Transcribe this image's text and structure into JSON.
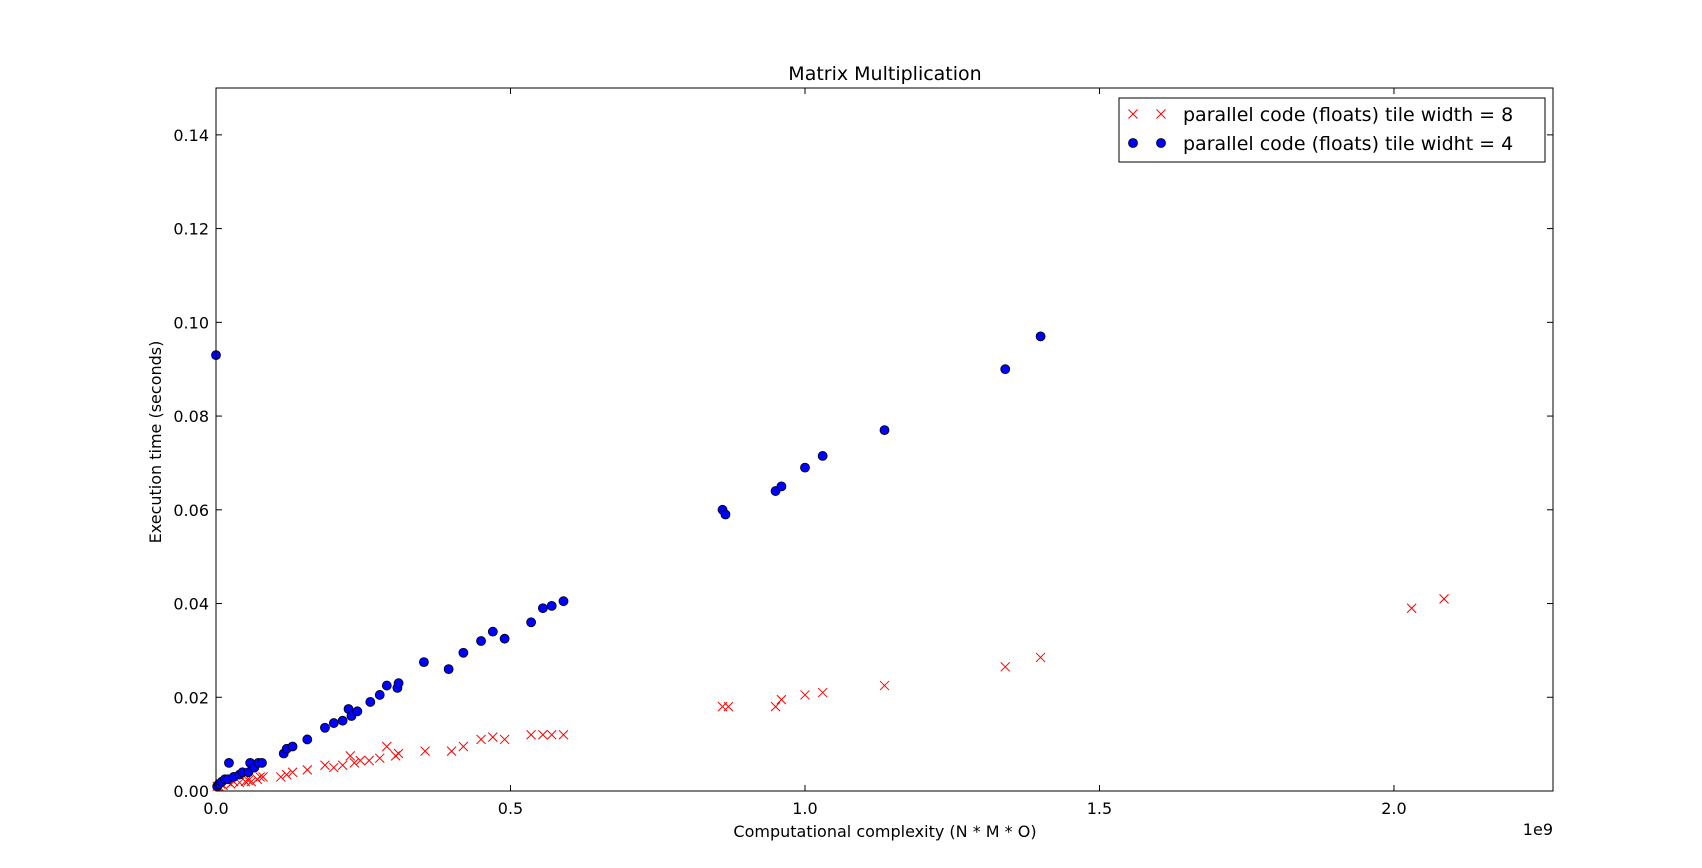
{
  "chart_data": {
    "type": "scatter",
    "title": "Matrix Multiplication",
    "xlabel": "Computational complexity (N * M * O)",
    "ylabel": "Execution time (seconds)",
    "x_offset_label": "1e9",
    "xlim": [
      0,
      2.27
    ],
    "ylim": [
      0,
      0.15
    ],
    "xticks": [
      "0.0",
      "0.5",
      "1.0",
      "1.5",
      "2.0"
    ],
    "xtick_values": [
      0,
      0.5,
      1.0,
      1.5,
      2.0
    ],
    "yticks": [
      "0.00",
      "0.02",
      "0.04",
      "0.06",
      "0.08",
      "0.10",
      "0.12",
      "0.14"
    ],
    "ytick_values": [
      0,
      0.02,
      0.04,
      0.06,
      0.08,
      0.1,
      0.12,
      0.14
    ],
    "grid": false,
    "legend_position": "top-right",
    "series": [
      {
        "name": "parallel code (floats) tile width = 8",
        "marker": "x",
        "color": "#ff0000",
        "points": [
          [
            0.002,
            0.001
          ],
          [
            0.005,
            0.001
          ],
          [
            0.008,
            0.0015
          ],
          [
            0.012,
            0.0012
          ],
          [
            0.02,
            0.002
          ],
          [
            0.025,
            0.0015
          ],
          [
            0.03,
            0.002
          ],
          [
            0.04,
            0.0018
          ],
          [
            0.05,
            0.002
          ],
          [
            0.055,
            0.0022
          ],
          [
            0.06,
            0.002
          ],
          [
            0.07,
            0.0025
          ],
          [
            0.075,
            0.003
          ],
          [
            0.08,
            0.003
          ],
          [
            0.11,
            0.003
          ],
          [
            0.12,
            0.0035
          ],
          [
            0.13,
            0.004
          ],
          [
            0.155,
            0.0045
          ],
          [
            0.185,
            0.0055
          ],
          [
            0.2,
            0.005
          ],
          [
            0.215,
            0.0055
          ],
          [
            0.228,
            0.0075
          ],
          [
            0.235,
            0.006
          ],
          [
            0.245,
            0.0065
          ],
          [
            0.26,
            0.0065
          ],
          [
            0.278,
            0.007
          ],
          [
            0.29,
            0.0095
          ],
          [
            0.305,
            0.0075
          ],
          [
            0.31,
            0.008
          ],
          [
            0.355,
            0.0085
          ],
          [
            0.4,
            0.0085
          ],
          [
            0.42,
            0.0095
          ],
          [
            0.45,
            0.011
          ],
          [
            0.47,
            0.0115
          ],
          [
            0.49,
            0.011
          ],
          [
            0.535,
            0.012
          ],
          [
            0.555,
            0.012
          ],
          [
            0.57,
            0.012
          ],
          [
            0.59,
            0.012
          ],
          [
            0.86,
            0.018
          ],
          [
            0.87,
            0.018
          ],
          [
            0.95,
            0.018
          ],
          [
            0.96,
            0.0195
          ],
          [
            1.0,
            0.0205
          ],
          [
            1.03,
            0.021
          ],
          [
            1.135,
            0.0225
          ],
          [
            1.34,
            0.0265
          ],
          [
            1.4,
            0.0285
          ],
          [
            2.03,
            0.039
          ],
          [
            2.085,
            0.041
          ]
        ]
      },
      {
        "name": "parallel code (floats) tile widht = 4",
        "marker": "o",
        "color": "#0000ff",
        "points": [
          [
            0.0,
            0.093
          ],
          [
            0.002,
            0.001
          ],
          [
            0.005,
            0.0015
          ],
          [
            0.01,
            0.002
          ],
          [
            0.015,
            0.0025
          ],
          [
            0.02,
            0.0025
          ],
          [
            0.022,
            0.006
          ],
          [
            0.03,
            0.003
          ],
          [
            0.04,
            0.0035
          ],
          [
            0.045,
            0.004
          ],
          [
            0.055,
            0.004
          ],
          [
            0.058,
            0.006
          ],
          [
            0.065,
            0.005
          ],
          [
            0.072,
            0.006
          ],
          [
            0.078,
            0.006
          ],
          [
            0.115,
            0.008
          ],
          [
            0.12,
            0.009
          ],
          [
            0.13,
            0.0095
          ],
          [
            0.155,
            0.011
          ],
          [
            0.185,
            0.0135
          ],
          [
            0.2,
            0.0145
          ],
          [
            0.215,
            0.015
          ],
          [
            0.225,
            0.0175
          ],
          [
            0.23,
            0.016
          ],
          [
            0.24,
            0.017
          ],
          [
            0.262,
            0.019
          ],
          [
            0.278,
            0.0205
          ],
          [
            0.29,
            0.0225
          ],
          [
            0.308,
            0.022
          ],
          [
            0.31,
            0.023
          ],
          [
            0.353,
            0.0275
          ],
          [
            0.395,
            0.026
          ],
          [
            0.42,
            0.0295
          ],
          [
            0.45,
            0.032
          ],
          [
            0.47,
            0.034
          ],
          [
            0.49,
            0.0325
          ],
          [
            0.535,
            0.036
          ],
          [
            0.555,
            0.039
          ],
          [
            0.57,
            0.0395
          ],
          [
            0.59,
            0.0405
          ],
          [
            0.86,
            0.06
          ],
          [
            0.865,
            0.059
          ],
          [
            0.95,
            0.064
          ],
          [
            0.96,
            0.065
          ],
          [
            1.0,
            0.069
          ],
          [
            1.03,
            0.0715
          ],
          [
            1.135,
            0.077
          ],
          [
            1.34,
            0.09
          ],
          [
            1.4,
            0.097
          ]
        ]
      }
    ]
  }
}
